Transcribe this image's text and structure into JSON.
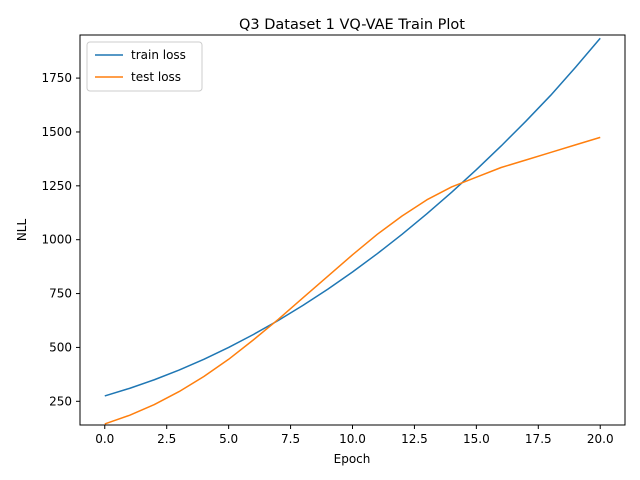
{
  "chart_data": {
    "type": "line",
    "title": "Q3 Dataset 1 VQ-VAE Train Plot",
    "xlabel": "Epoch",
    "ylabel": "NLL",
    "xlim": [
      -1,
      21
    ],
    "ylim": [
      140,
      1950
    ],
    "xticks": [
      0.0,
      2.5,
      5.0,
      7.5,
      10.0,
      12.5,
      15.0,
      17.5,
      20.0
    ],
    "xtick_labels": [
      "0.0",
      "2.5",
      "5.0",
      "7.5",
      "10.0",
      "12.5",
      "15.0",
      "17.5",
      "20.0"
    ],
    "yticks": [
      250,
      500,
      750,
      1000,
      1250,
      1500,
      1750
    ],
    "ytick_labels": [
      "250",
      "500",
      "750",
      "1000",
      "1250",
      "1500",
      "1750"
    ],
    "grid": false,
    "legend_position": "upper-left",
    "x": [
      0,
      1,
      2,
      3,
      4,
      5,
      6,
      7,
      8,
      9,
      10,
      11,
      12,
      13,
      14,
      15,
      16,
      17,
      18,
      19,
      20
    ],
    "series": [
      {
        "name": "train loss",
        "color": "#1f77b4",
        "values": [
          275,
          310,
          350,
          395,
          445,
          500,
          560,
          625,
          695,
          770,
          850,
          935,
          1025,
          1120,
          1220,
          1325,
          1435,
          1550,
          1670,
          1800,
          1935
        ]
      },
      {
        "name": "test loss",
        "color": "#ff7f0e",
        "values": [
          145,
          185,
          235,
          295,
          365,
          445,
          535,
          630,
          730,
          830,
          930,
          1025,
          1110,
          1185,
          1245,
          1290,
          1335,
          1370,
          1405,
          1440,
          1475
        ]
      }
    ]
  }
}
